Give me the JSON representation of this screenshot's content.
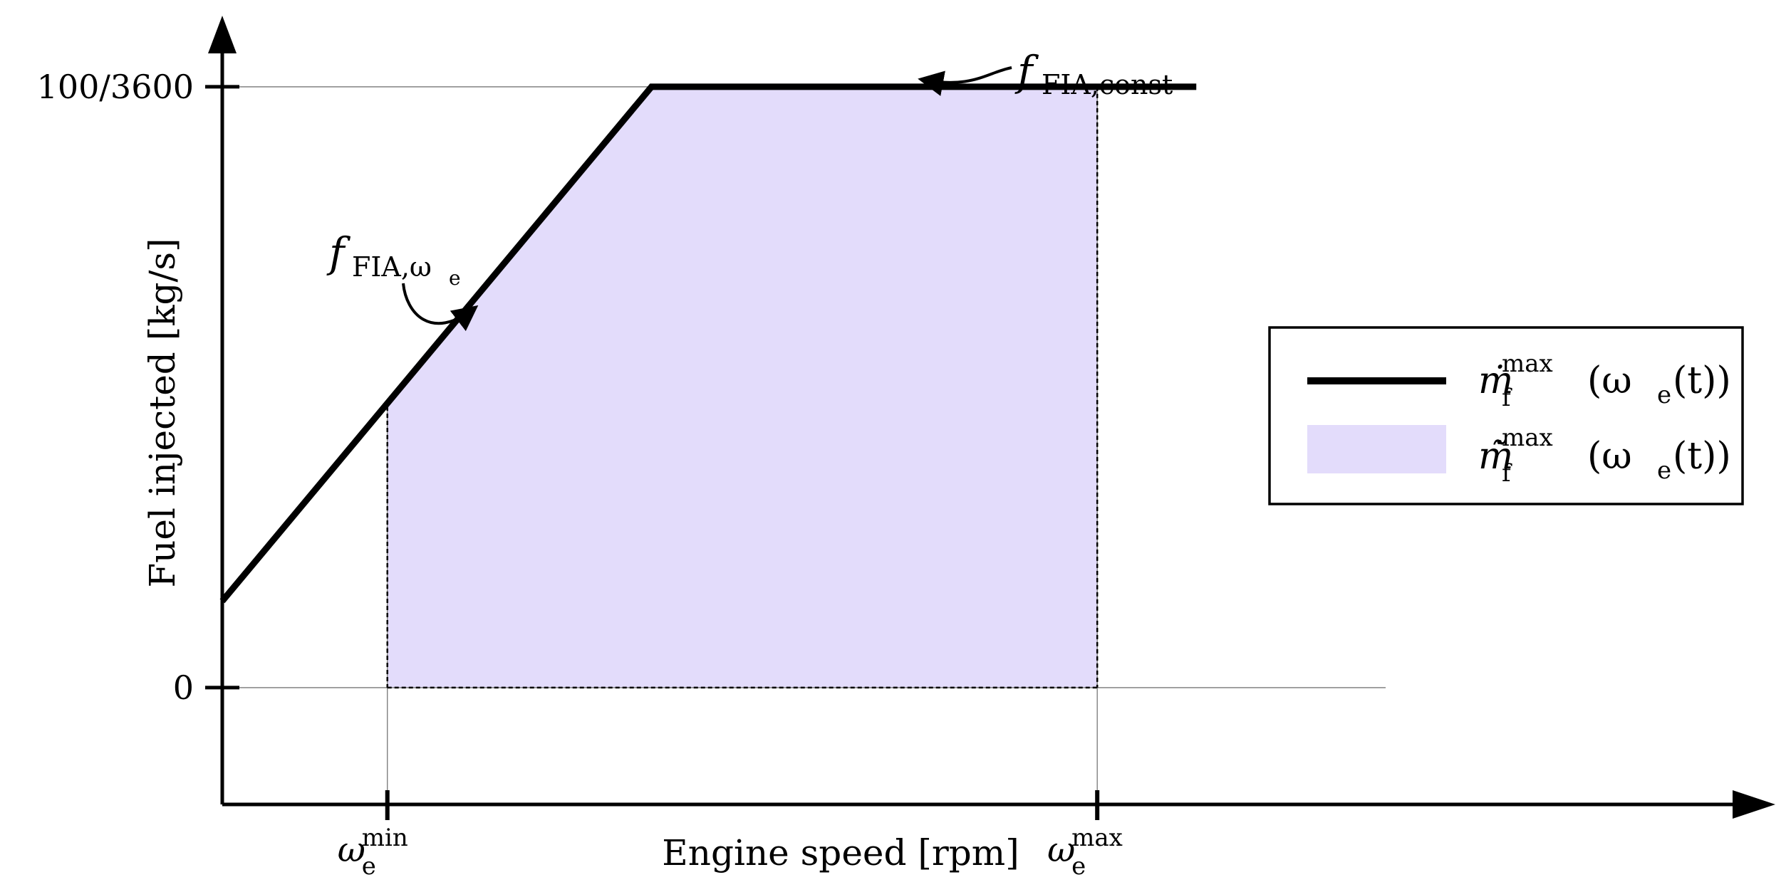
{
  "chart_data": {
    "type": "line",
    "title": "",
    "xlabel": "Engine speed [rpm]",
    "ylabel": "Fuel injected [kg/s]",
    "y_ticks": [
      {
        "value": 0,
        "label": "0"
      },
      {
        "value": 0.027778,
        "label": "100/3600"
      }
    ],
    "x_ticks": [
      {
        "value": 0.25,
        "label": "ω",
        "sub": "e",
        "sup": "min"
      },
      {
        "value": 0.68,
        "label": "ω",
        "sub": "e",
        "sup": "max"
      }
    ],
    "xlim": [
      0.15,
      0.9
    ],
    "ylim": [
      -0.0054,
      0.0285
    ],
    "grid": false,
    "legend_position": "right",
    "series": [
      {
        "name": "ṁ_f^max (ω_e(t))",
        "kind": "line",
        "color": "#000000",
        "x": [
          0.15,
          0.41,
          0.74
        ],
        "y": [
          0.004,
          0.027778,
          0.027778
        ]
      },
      {
        "name": "m̃̇_f^max (ω_e(t))",
        "kind": "area",
        "color": "#e3dcfb",
        "x": [
          0.25,
          0.41,
          0.68
        ],
        "y": [
          0.013,
          0.027778,
          0.027778
        ]
      }
    ],
    "legend": [
      {
        "kind": "line",
        "main": "ṁ",
        "sub": "f",
        "sup": "max",
        "rest": " (ω",
        "rest_sub": "e",
        "rest_end": "(t))"
      },
      {
        "kind": "area",
        "main": "m̃̇",
        "sub": "f",
        "sup": "max",
        "rest": " (ω",
        "rest_sub": "e",
        "rest_end": "(t))"
      }
    ],
    "annotations": [
      {
        "main": "f",
        "sub": "FIA,const",
        "point_x": 0.57,
        "point_y": 0.027778
      },
      {
        "main": "f",
        "sub": "FIA,ω",
        "subsub": "e",
        "point_x": 0.3,
        "point_y": 0.0174
      }
    ],
    "colors": {
      "line": "#000000",
      "fill": "#e3dcfb",
      "guide": "#555555"
    }
  }
}
